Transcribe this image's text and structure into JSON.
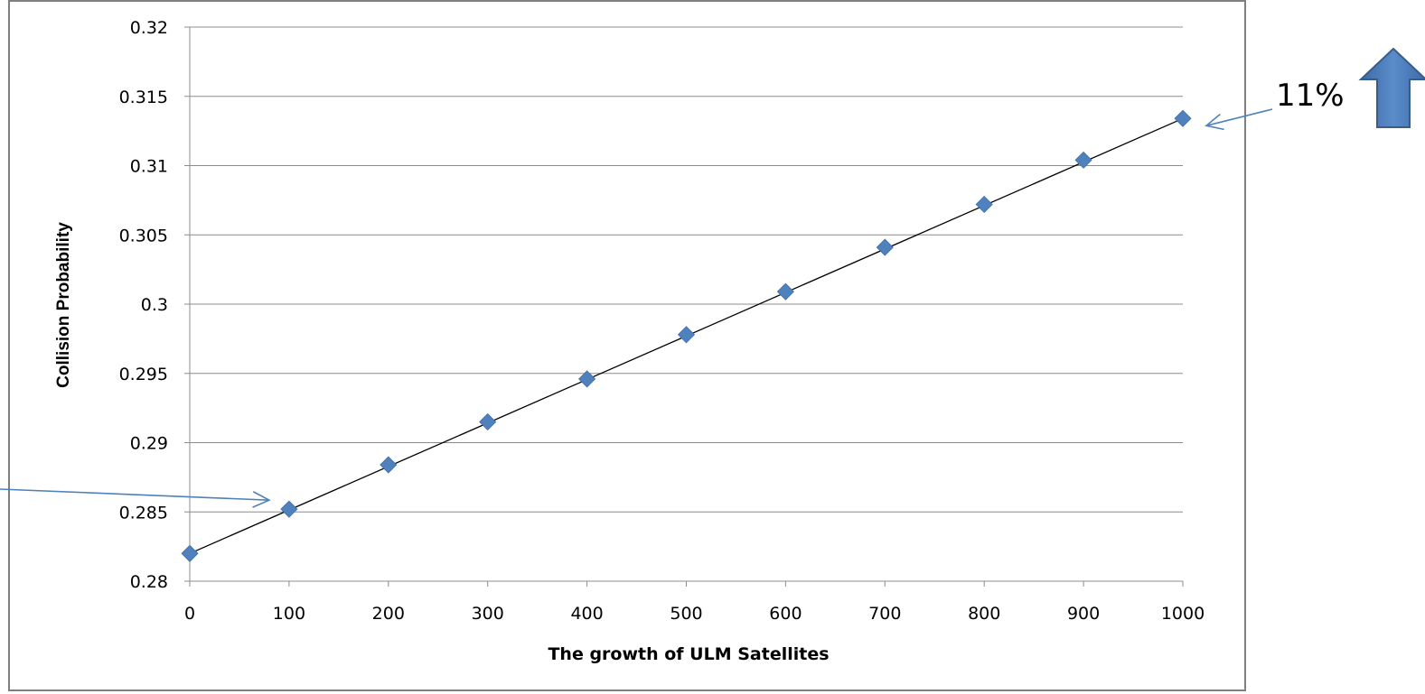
{
  "chart_data": {
    "type": "scatter",
    "title": "",
    "xlabel": "The growth of ULM Satellites",
    "ylabel": "Collision Probability",
    "xlim": [
      0,
      1000
    ],
    "ylim": [
      0.28,
      0.32
    ],
    "x_ticks": [
      0,
      100,
      200,
      300,
      400,
      500,
      600,
      700,
      800,
      900,
      1000
    ],
    "x_tick_labels": [
      "0",
      "100",
      "200",
      "300",
      "400",
      "500",
      "600",
      "700",
      "800",
      "900",
      "1000"
    ],
    "y_ticks": [
      0.28,
      0.285,
      0.29,
      0.295,
      0.3,
      0.305,
      0.31,
      0.315,
      0.32
    ],
    "y_tick_labels": [
      "0.28",
      "0.285",
      "0.29",
      "0.295",
      "0.3",
      "0.305",
      "0.31",
      "0.315",
      "0.32"
    ],
    "grid": "horizontal",
    "legend": "none",
    "series": [
      {
        "marker": "diamond",
        "color": "#4f81bd",
        "x": [
          0,
          100,
          200,
          300,
          400,
          500,
          600,
          700,
          800,
          900,
          1000
        ],
        "y": [
          0.282,
          0.2852,
          0.2884,
          0.2915,
          0.2946,
          0.2978,
          0.3009,
          0.3041,
          0.3072,
          0.3104,
          0.3134
        ]
      }
    ],
    "trendline": {
      "type": "linear",
      "color": "#000000",
      "from": [
        0,
        0.282
      ],
      "to": [
        1000,
        0.3134
      ]
    },
    "annotations": [
      {
        "text": "11%",
        "points_to": [
          1000,
          0.3134
        ],
        "arrow_color": "#4f81bd"
      },
      {
        "text": "",
        "points_to": [
          100,
          0.2852
        ],
        "arrow_color": "#4f81bd"
      }
    ],
    "up_arrow": {
      "color": "#4f81bd",
      "outline": "#385d8a"
    },
    "frame_color": "#7f7f7f",
    "grid_color": "#8c8c8c"
  }
}
